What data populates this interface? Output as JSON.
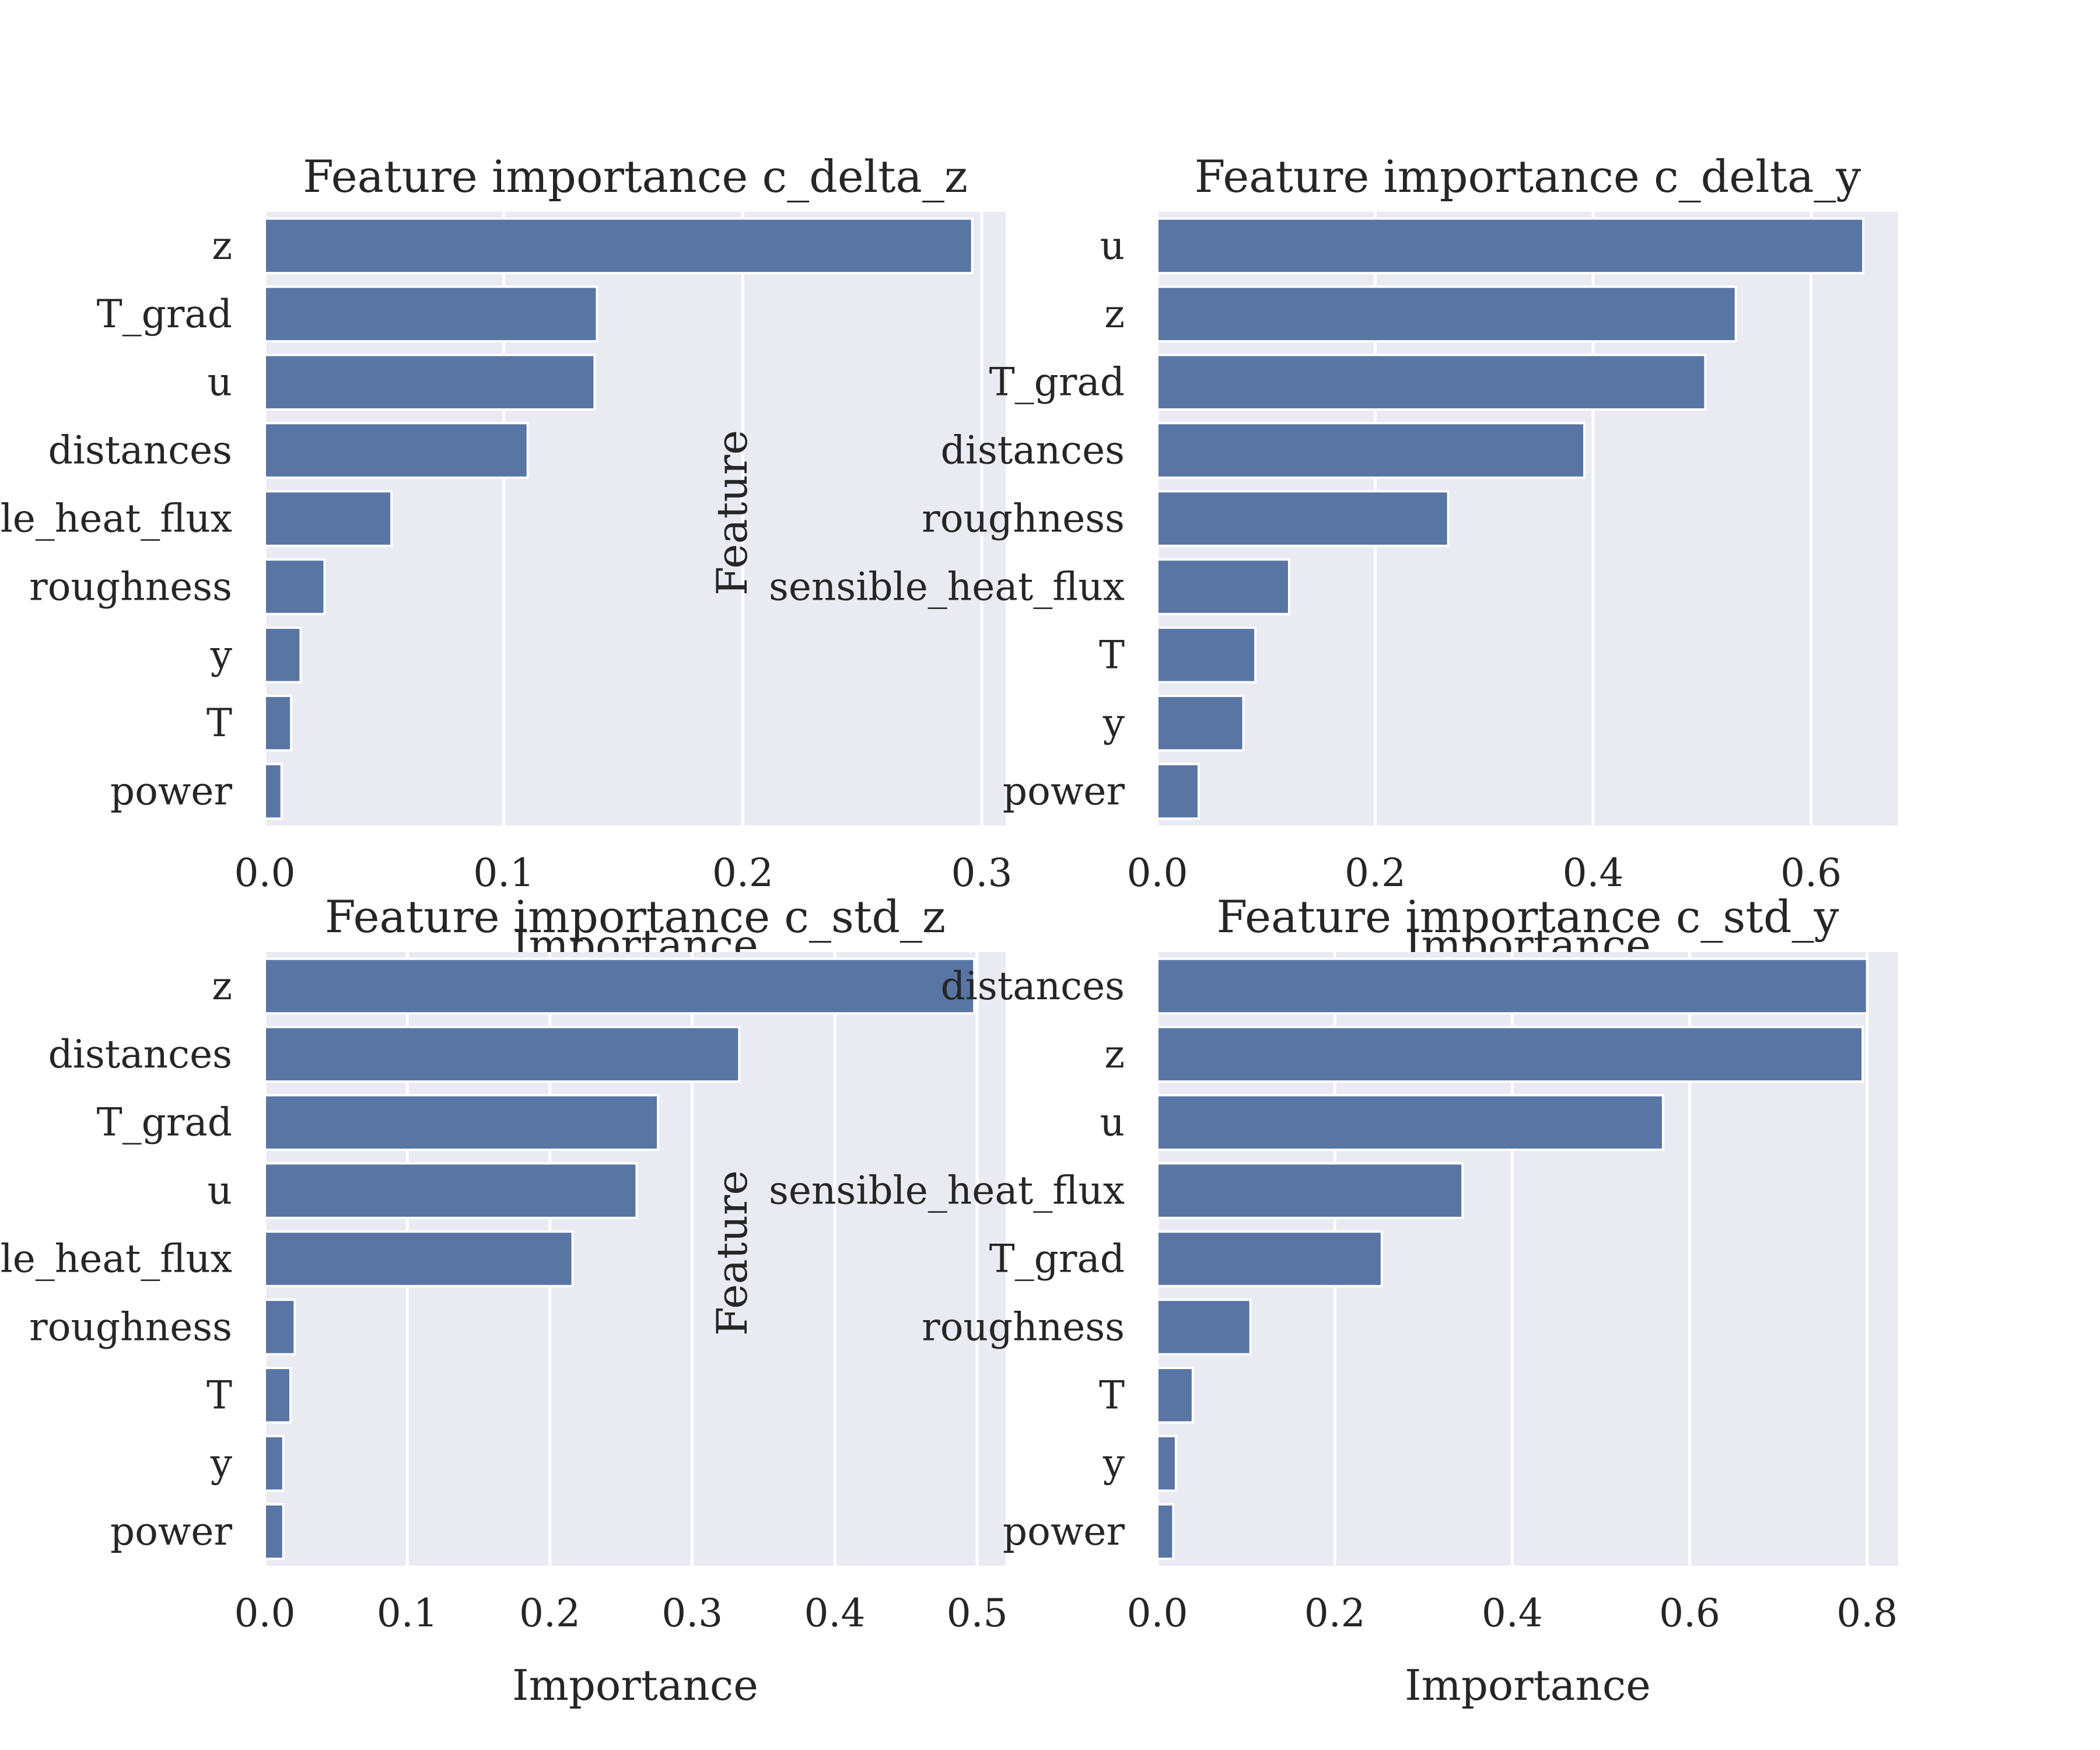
{
  "colors": {
    "bar": "#5975a4",
    "panel_background": "#eaeaf2",
    "grid": "#ffffff",
    "text": "#262626"
  },
  "chart_data": [
    {
      "type": "bar",
      "orientation": "horizontal",
      "title": "Feature importance c_delta_z",
      "xlabel": "Importance",
      "ylabel": "Feature",
      "categories": [
        "z",
        "T_grad",
        "u",
        "distances",
        "sensible_heat_flux",
        "roughness",
        "y",
        "T",
        "power"
      ],
      "values": [
        0.296,
        0.139,
        0.138,
        0.11,
        0.053,
        0.025,
        0.015,
        0.011,
        0.007
      ],
      "xlim": [
        0,
        0.31
      ],
      "xticks": [
        "0.0",
        "0.1",
        "0.2",
        "0.3"
      ],
      "xtick_values": [
        0,
        0.1,
        0.2,
        0.3
      ],
      "grid": true
    },
    {
      "type": "bar",
      "orientation": "horizontal",
      "title": "Feature importance c_delta_y",
      "xlabel": "Importance",
      "ylabel": "",
      "categories": [
        "u",
        "z",
        "T_grad",
        "distances",
        "roughness",
        "sensible_heat_flux",
        "T",
        "y",
        "power"
      ],
      "values": [
        0.648,
        0.531,
        0.503,
        0.392,
        0.267,
        0.121,
        0.09,
        0.079,
        0.038
      ],
      "xlim": [
        0,
        0.68
      ],
      "xticks": [
        "0.0",
        "0.2",
        "0.4",
        "0.6"
      ],
      "xtick_values": [
        0,
        0.2,
        0.4,
        0.6
      ],
      "grid": true
    },
    {
      "type": "bar",
      "orientation": "horizontal",
      "title": "Feature importance c_std_z",
      "xlabel": "Importance",
      "ylabel": "Feature",
      "categories": [
        "z",
        "distances",
        "T_grad",
        "u",
        "sensible_heat_flux",
        "roughness",
        "T",
        "y",
        "power"
      ],
      "values": [
        0.498,
        0.333,
        0.276,
        0.261,
        0.216,
        0.021,
        0.018,
        0.013,
        0.013
      ],
      "xlim": [
        0,
        0.52
      ],
      "xticks": [
        "0.0",
        "0.1",
        "0.2",
        "0.3",
        "0.4",
        "0.5"
      ],
      "xtick_values": [
        0,
        0.1,
        0.2,
        0.3,
        0.4,
        0.5
      ],
      "grid": true
    },
    {
      "type": "bar",
      "orientation": "horizontal",
      "title": "Feature importance c_std_y",
      "xlabel": "Importance",
      "ylabel": "",
      "categories": [
        "distances",
        "z",
        "u",
        "sensible_heat_flux",
        "T_grad",
        "roughness",
        "T",
        "y",
        "power"
      ],
      "values": [
        0.8,
        0.795,
        0.57,
        0.344,
        0.253,
        0.105,
        0.04,
        0.021,
        0.018
      ],
      "xlim": [
        0,
        0.835
      ],
      "xticks": [
        "0.0",
        "0.2",
        "0.4",
        "0.6",
        "0.8"
      ],
      "xtick_values": [
        0,
        0.2,
        0.4,
        0.6,
        0.8
      ],
      "grid": true
    }
  ]
}
